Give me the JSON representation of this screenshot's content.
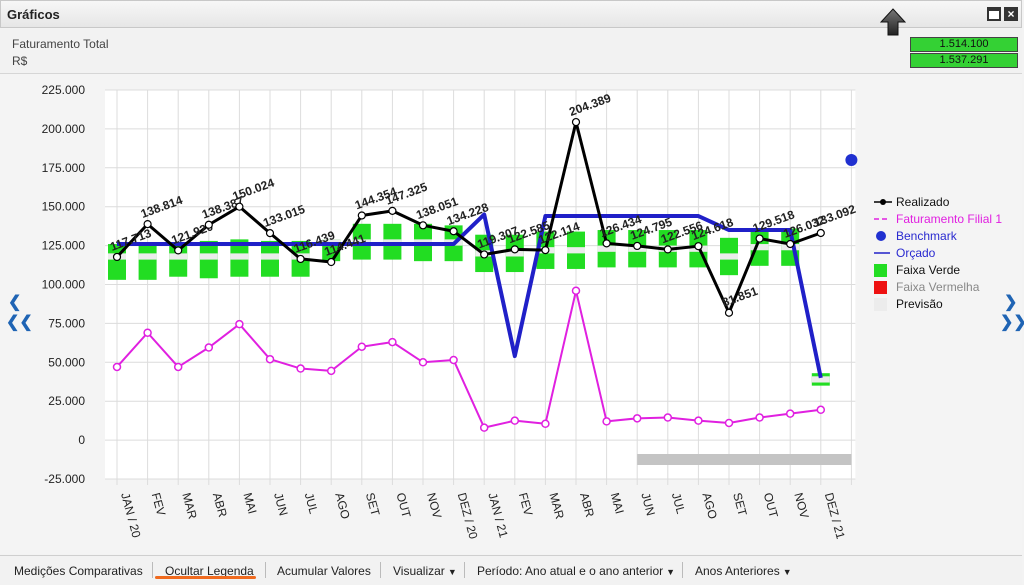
{
  "window": {
    "title": "Gráficos"
  },
  "kpi": {
    "title": "Faturamento Total",
    "unit": "R$",
    "value_1": "1.514.100",
    "value_2": "1.537.291"
  },
  "footer": {
    "items": [
      {
        "label": "Medições Comparativas",
        "has_caret": false
      },
      {
        "label": "Ocultar Legenda",
        "has_caret": false
      },
      {
        "label": "Acumular Valores",
        "has_caret": false
      },
      {
        "label": "Visualizar",
        "has_caret": true
      },
      {
        "label": "Período: Ano atual e o ano anterior",
        "has_caret": true
      },
      {
        "label": "Anos Anteriores",
        "has_caret": true
      }
    ]
  },
  "chart_data": {
    "type": "line",
    "categories": [
      "JAN / 20",
      "FEV",
      "MAR",
      "ABR",
      "MAI",
      "JUN",
      "JUL",
      "AGO",
      "SET",
      "OUT",
      "NOV",
      "DEZ / 20",
      "JAN / 21",
      "FEV",
      "MAR",
      "ABR",
      "MAI",
      "JUN",
      "JUL",
      "AGO",
      "SET",
      "OUT",
      "NOV",
      "DEZ / 21",
      ""
    ],
    "ylim": [
      -25000,
      225000
    ],
    "yticks": [
      -25000,
      0,
      25000,
      50000,
      75000,
      100000,
      125000,
      150000,
      175000,
      200000,
      225000
    ],
    "ytick_labels": [
      "-25.000",
      "0",
      "25.000",
      "50.000",
      "75.000",
      "100.000",
      "125.000",
      "150.000",
      "175.000",
      "200.000",
      "225.000"
    ],
    "grid": true,
    "legend_position": "right",
    "series": [
      {
        "name": "Realizado",
        "color": "#000000",
        "values": [
          117713,
          138814,
          121920,
          138387,
          150024,
          133015,
          116439,
          114441,
          144354,
          147325,
          138051,
          134228,
          119307,
          122585,
          122114,
          204389,
          126434,
          124795,
          122556,
          124618,
          81851,
          129518,
          126032,
          133092,
          null
        ],
        "labels": [
          "117.713",
          "138.814",
          "121.920",
          "138.387",
          "150.024",
          "133.015",
          "116.439",
          "114.441",
          "144.354",
          "147.325",
          "138.051",
          "134.228",
          "119.307",
          "122.585",
          "122.114",
          "204.389",
          "126.434",
          "124.795",
          "122.556",
          "124.618",
          "81.851",
          "129.518",
          "126.032",
          "133.092",
          ""
        ]
      },
      {
        "name": "Faturamento Filial 1",
        "color": "#e020e0",
        "values": [
          47000,
          69000,
          47000,
          59500,
          74500,
          52000,
          46000,
          44500,
          60000,
          63000,
          50000,
          51500,
          8000,
          12500,
          10500,
          96000,
          12000,
          14000,
          14500,
          12500,
          11000,
          14500,
          17000,
          19500,
          null
        ]
      },
      {
        "name": "Benchmark",
        "color": "#2030d0",
        "values": [
          null,
          null,
          null,
          null,
          null,
          null,
          null,
          null,
          null,
          null,
          null,
          null,
          null,
          null,
          null,
          null,
          null,
          null,
          null,
          null,
          null,
          null,
          null,
          null,
          180000
        ]
      },
      {
        "name": "Orçado",
        "color": "#2020c8",
        "values": [
          126000,
          126000,
          126000,
          126000,
          126000,
          126000,
          126000,
          126000,
          126000,
          126000,
          126000,
          126000,
          145000,
          54000,
          144000,
          144000,
          144000,
          144000,
          144000,
          144000,
          135000,
          135000,
          135000,
          40000,
          null
        ]
      },
      {
        "name": "Faixa Verde",
        "color": "#22dd22",
        "ranges": [
          [
            103000,
            126000
          ],
          [
            103000,
            125000
          ],
          [
            105000,
            127000
          ],
          [
            104000,
            128000
          ],
          [
            105000,
            129000
          ],
          [
            105000,
            128000
          ],
          [
            105000,
            128000
          ],
          [
            115000,
            129000
          ],
          [
            116000,
            139000
          ],
          [
            116000,
            139000
          ],
          [
            115000,
            139000
          ],
          [
            115000,
            138000
          ],
          [
            108000,
            132000
          ],
          [
            108000,
            132000
          ],
          [
            110000,
            134000
          ],
          [
            110000,
            134000
          ],
          [
            111000,
            135000
          ],
          [
            111000,
            135000
          ],
          [
            111000,
            135000
          ],
          [
            111000,
            135000
          ],
          [
            106000,
            130000
          ],
          [
            112000,
            136000
          ],
          [
            112000,
            136000
          ],
          [
            35000,
            43000
          ],
          null
        ]
      },
      {
        "name": "Faixa Vermelha",
        "color": "#ee1111",
        "ranges": []
      },
      {
        "name": "Previsão",
        "color": "#ececec",
        "ranges": [
          [
            116000,
            120000
          ],
          [
            116000,
            120000
          ],
          [
            116000,
            120000
          ],
          [
            116000,
            120000
          ],
          [
            116000,
            120000
          ],
          [
            116000,
            120000
          ],
          [
            116000,
            120000
          ],
          [
            125000,
            129000
          ],
          [
            125000,
            129000
          ],
          [
            125000,
            129000
          ],
          [
            125000,
            129000
          ],
          [
            125000,
            129000
          ],
          [
            118000,
            122000
          ],
          [
            118000,
            122000
          ],
          [
            120000,
            124000
          ],
          [
            120000,
            124000
          ],
          [
            121000,
            125000
          ],
          [
            121000,
            125000
          ],
          [
            121000,
            125000
          ],
          [
            121000,
            125000
          ],
          [
            116000,
            120000
          ],
          [
            122000,
            126000
          ],
          [
            122000,
            126000
          ],
          [
            37000,
            41000
          ],
          null
        ]
      }
    ],
    "scroll_bar": {
      "from_index": 17.0,
      "to_index": 24.0,
      "color": "#c4c4c4"
    }
  }
}
